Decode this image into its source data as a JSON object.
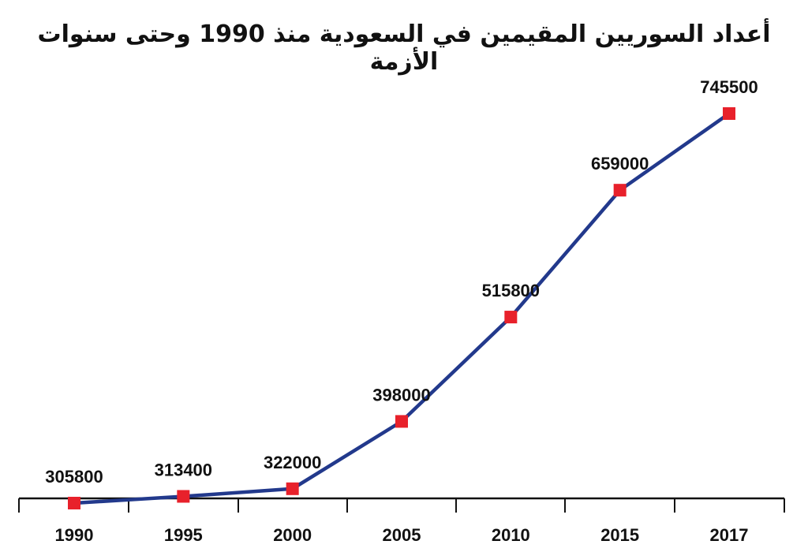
{
  "chart_data": {
    "type": "line",
    "title": "أعداد السوريين المقيمين في السعودية منذ 1990 وحتى سنوات الأزمة",
    "xlabel": "",
    "ylabel": "",
    "categories": [
      "1990",
      "1995",
      "2000",
      "2005",
      "2010",
      "2015",
      "2017"
    ],
    "series": [
      {
        "values": [
          305800,
          313400,
          322000,
          398000,
          515800,
          659000,
          745500
        ]
      }
    ],
    "data_labels": [
      "305800",
      "313400",
      "322000",
      "398000",
      "515800",
      "659000",
      "745500"
    ],
    "grid": false,
    "legend": "none",
    "colors": {
      "line": "#22398c",
      "marker": "#e8212b",
      "axis": "#111111",
      "text": "#111111"
    }
  }
}
